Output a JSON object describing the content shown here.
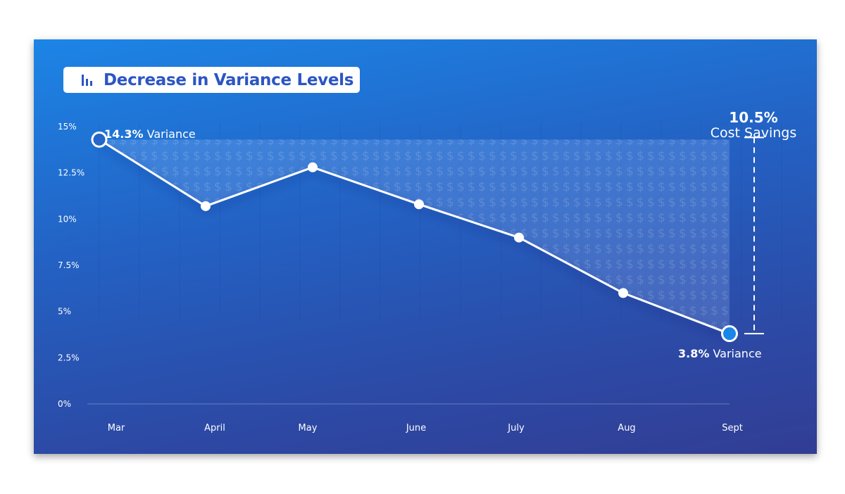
{
  "title": "Decrease in Variance Levels",
  "chart_data": {
    "type": "line",
    "title": "Decrease in Variance Levels",
    "categories": [
      "Mar",
      "April",
      "May",
      "June",
      "July",
      "Aug",
      "Sept"
    ],
    "values": [
      14.3,
      10.7,
      12.8,
      10.8,
      9.0,
      6.0,
      3.8
    ],
    "unit": "%",
    "ylim": [
      0,
      15
    ],
    "y_ticks": [
      "0%",
      "2.5%",
      "5%",
      "7.5%",
      "10%",
      "12.5%",
      "15%"
    ],
    "y_tick_values": [
      0,
      2.5,
      5,
      7.5,
      10,
      12.5,
      15
    ],
    "grid": false,
    "fill_pattern_glyph": "$",
    "annotations": {
      "start": {
        "value": "14.3%",
        "label": "Variance"
      },
      "end": {
        "value": "3.8%",
        "label": "Variance"
      },
      "savings": {
        "value": "10.5%",
        "label": "Cost Savings"
      }
    }
  },
  "colors": {
    "title_text": "#2c55c4",
    "line": "#ffffff",
    "end_marker": "#1a86e8"
  },
  "icons": {
    "title": "bar-chart-icon"
  }
}
